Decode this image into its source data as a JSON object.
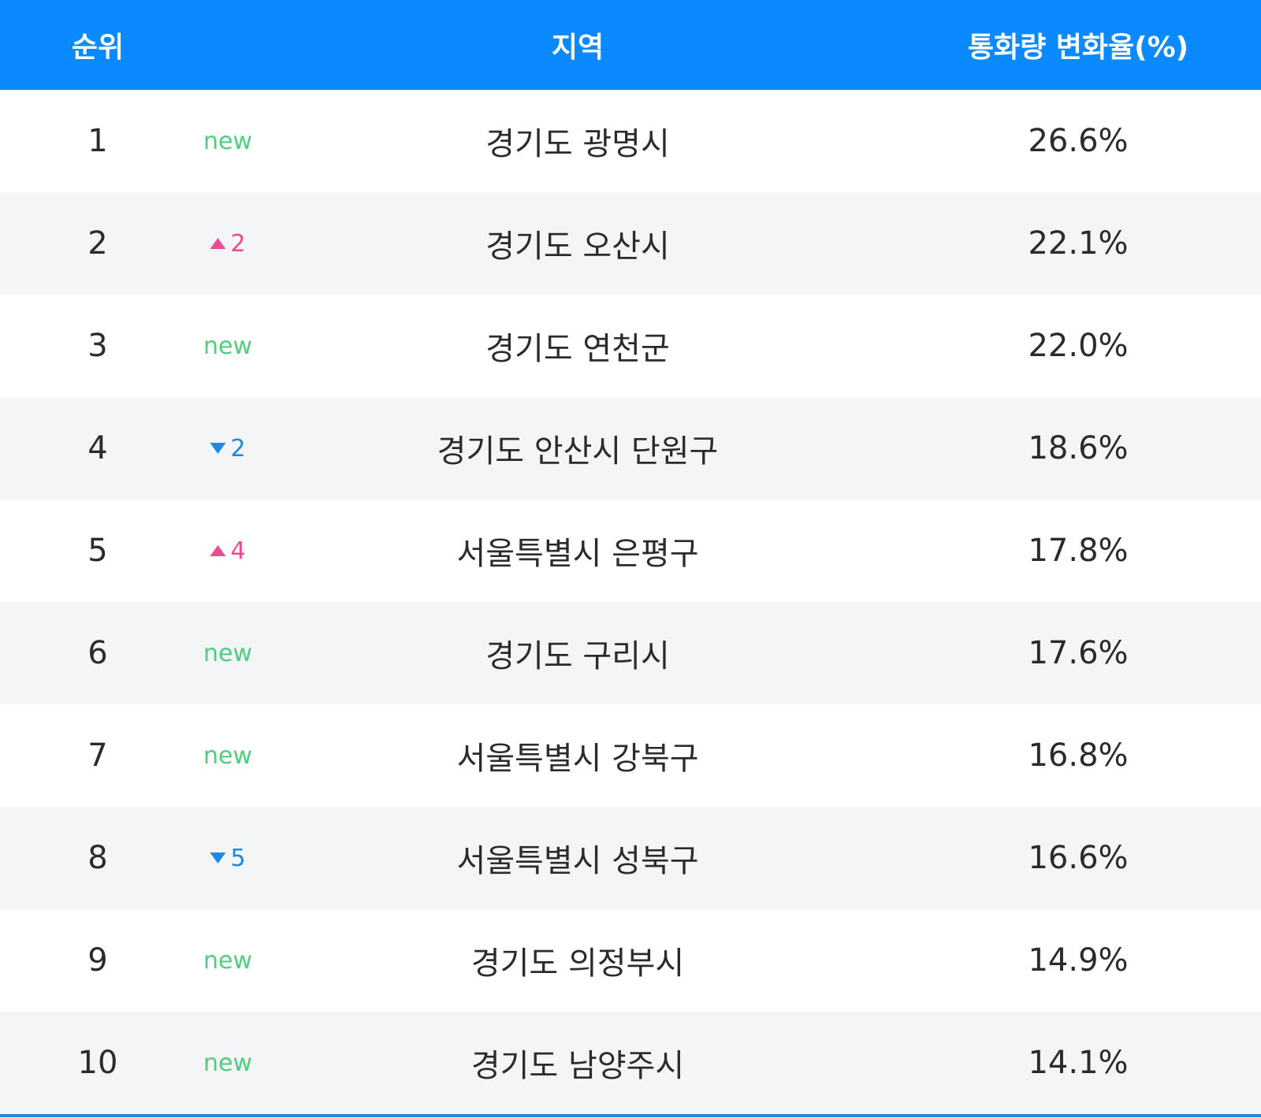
{
  "table": {
    "headers": [
      "순위",
      "지역",
      "통화량 변화율(%)"
    ],
    "rows": [
      {
        "rank": "1",
        "trend": "new",
        "change": "new",
        "region": "경기도 광명시",
        "rate": "26.6%"
      },
      {
        "rank": "2",
        "trend": "up",
        "change": "2",
        "region": "경기도 오산시",
        "rate": "22.1%"
      },
      {
        "rank": "3",
        "trend": "new",
        "change": "new",
        "region": "경기도 연천군",
        "rate": "22.0%"
      },
      {
        "rank": "4",
        "trend": "down",
        "change": "2",
        "region": "경기도 안산시 단원구",
        "rate": "18.6%"
      },
      {
        "rank": "5",
        "trend": "up",
        "change": "4",
        "region": "서울특별시 은평구",
        "rate": "17.8%"
      },
      {
        "rank": "6",
        "trend": "new",
        "change": "new",
        "region": "경기도 구리시",
        "rate": "17.6%"
      },
      {
        "rank": "7",
        "trend": "new",
        "change": "new",
        "region": "서울특별시 강북구",
        "rate": "16.8%"
      },
      {
        "rank": "8",
        "trend": "down",
        "change": "5",
        "region": "서울특별시 성북구",
        "rate": "16.6%"
      },
      {
        "rank": "9",
        "trend": "new",
        "change": "new",
        "region": "경기도 의정부시",
        "rate": "14.9%"
      },
      {
        "rank": "10",
        "trend": "new",
        "change": "new",
        "region": "경기도 남양주시",
        "rate": "14.1%"
      }
    ]
  }
}
